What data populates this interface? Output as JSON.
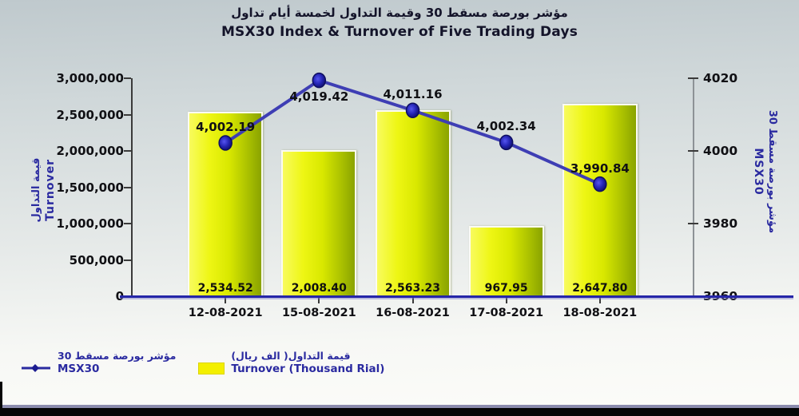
{
  "chart_data": {
    "type": "combo",
    "title_ar": "مؤشر بورصة مسقط 30 وقيمة التداول لخمسة أيام تداول",
    "title_en": "MSX30 Index & Turnover of Five Trading Days",
    "categories": [
      "12-08-2021",
      "15-08-2021",
      "16-08-2021",
      "17-08-2021",
      "18-08-2021"
    ],
    "series": [
      {
        "name": "Turnover (Thousand Rial)",
        "name_ar": "قيمة التداول( الف ريال)",
        "type": "bar",
        "axis": "left",
        "values": [
          2534.52,
          2008.4,
          2563.23,
          967.95,
          2647.8
        ],
        "labels": [
          "2,534.52",
          "2,008.40",
          "2,563.23",
          "967.95",
          "2,647.80"
        ],
        "value_scale_to_axis": 1000,
        "color_start": "#f8fb5e",
        "color_end": "#8aa300",
        "legend_swatch_color": "#f3ef00"
      },
      {
        "name": "MSX30",
        "name_ar": "مؤشر بورصة مسقط 30",
        "type": "line",
        "axis": "right",
        "values": [
          4002.19,
          4019.42,
          4011.16,
          4002.34,
          3990.84
        ],
        "labels": [
          "4,002.19",
          "4,019.42",
          "4,011.16",
          "4,002.34",
          "3,990.84"
        ],
        "label_pos": [
          "above",
          "below",
          "above",
          "above",
          "above"
        ],
        "line_color": "#3e3eb4",
        "marker_color": "#1c1c90"
      }
    ],
    "left_axis": {
      "label_ar": "قيمة التداول",
      "label_en": "Turnover",
      "min": 0,
      "max": 3000000,
      "ticks": [
        "0",
        "500,000",
        "1,000,000",
        "1,500,000",
        "2,000,000",
        "2,500,000",
        "3,000,000"
      ]
    },
    "right_axis": {
      "label_ar": "مؤشر بورصة مسقط 30",
      "label_en": "MSX30",
      "min": 3960,
      "max": 4020,
      "ticks": [
        "3960",
        "3980",
        "4000",
        "4020"
      ]
    },
    "baseline_color": "#2525a8",
    "grid": "off",
    "legend_position": "bottom-left"
  }
}
